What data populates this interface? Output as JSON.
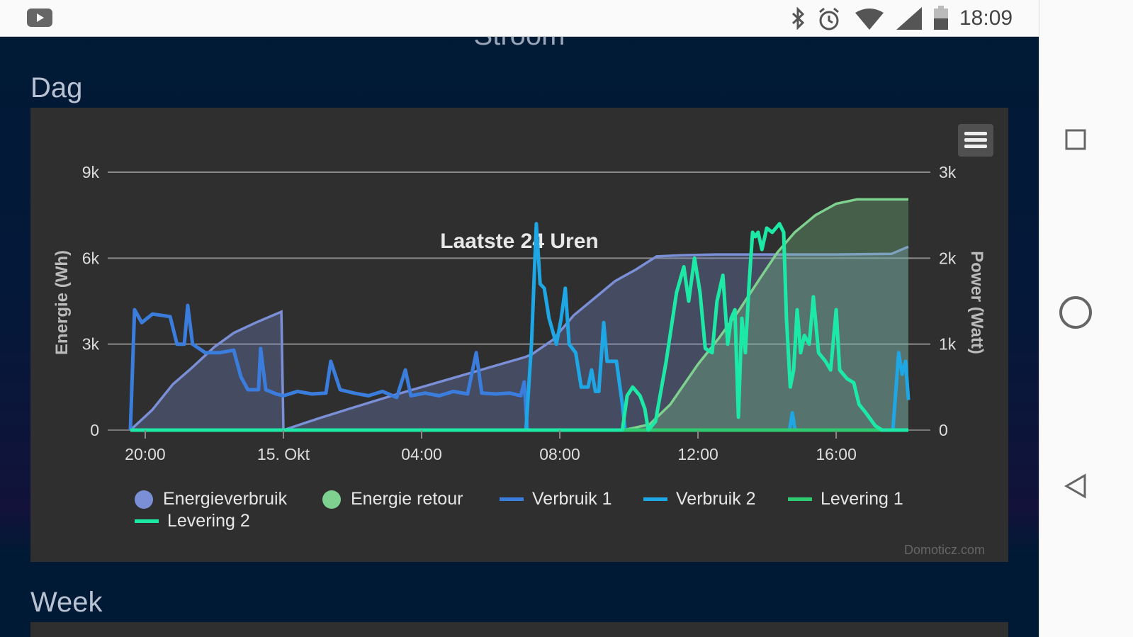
{
  "status_bar": {
    "time": "18:09",
    "icons": [
      "youtube-icon",
      "bluetooth-icon",
      "alarm-icon",
      "wifi-icon",
      "signal-icon",
      "battery-icon"
    ]
  },
  "page": {
    "heading": "Stroom",
    "section_day": "Dag",
    "section_week": "Week",
    "credits": "Domoticz.com"
  },
  "nav_bar": {
    "icons": [
      "recents-icon",
      "home-icon",
      "back-icon"
    ]
  },
  "chart_data": {
    "type": "line",
    "title": "Laatste 24 Uren",
    "x_unit": "hours since 20:00 (14 Okt)",
    "xlim": [
      -0.43,
      22.09
    ],
    "x_ticks": [
      {
        "value": 0,
        "label": "20:00"
      },
      {
        "value": 4,
        "label": "15. Okt"
      },
      {
        "value": 8,
        "label": "04:00"
      },
      {
        "value": 12,
        "label": "08:00"
      },
      {
        "value": 16,
        "label": "12:00"
      },
      {
        "value": 20,
        "label": "16:00"
      }
    ],
    "ylabel_left": "Energie (Wh)",
    "ylim_left": [
      0,
      9000
    ],
    "y_ticks_left": [
      {
        "value": 0,
        "label": "0"
      },
      {
        "value": 3000,
        "label": "3k"
      },
      {
        "value": 6000,
        "label": "6k"
      },
      {
        "value": 9000,
        "label": "9k"
      }
    ],
    "ylabel_right": "Power (Watt)",
    "ylim_right": [
      0,
      3000
    ],
    "y_ticks_right": [
      {
        "value": 0,
        "label": "0"
      },
      {
        "value": 1000,
        "label": "1k"
      },
      {
        "value": 2000,
        "label": "2k"
      },
      {
        "value": 3000,
        "label": "3k"
      }
    ],
    "grid": true,
    "legend_position": "bottom",
    "series": [
      {
        "name": "Energieverbruik",
        "kind": "area",
        "axis": "left",
        "color": "#7b8fd6",
        "legend_symbol": "dot",
        "points": [
          [
            -0.43,
            0
          ],
          [
            0.2,
            700
          ],
          [
            0.8,
            1600
          ],
          [
            1.33,
            2150
          ],
          [
            2.0,
            2900
          ],
          [
            2.56,
            3390
          ],
          [
            3.2,
            3750
          ],
          [
            3.94,
            4130
          ],
          [
            4.0,
            0
          ],
          [
            5.0,
            400
          ],
          [
            6,
            780
          ],
          [
            7,
            1150
          ],
          [
            8,
            1500
          ],
          [
            9,
            1850
          ],
          [
            10,
            2200
          ],
          [
            11,
            2550
          ],
          [
            11.2,
            2650
          ],
          [
            11.8,
            3150
          ],
          [
            12.4,
            4000
          ],
          [
            13,
            4600
          ],
          [
            13.6,
            5200
          ],
          [
            14.2,
            5600
          ],
          [
            14.8,
            6060
          ],
          [
            15.5,
            6100
          ],
          [
            16.5,
            6130
          ],
          [
            20,
            6130
          ],
          [
            21.6,
            6150
          ],
          [
            22.09,
            6400
          ]
        ]
      },
      {
        "name": "Energie retour",
        "kind": "area",
        "axis": "left",
        "color": "#7fd18f",
        "legend_symbol": "dot",
        "points": [
          [
            -0.43,
            0
          ],
          [
            13.85,
            0
          ],
          [
            14.6,
            200
          ],
          [
            15.2,
            900
          ],
          [
            16,
            2300
          ],
          [
            16.6,
            3200
          ],
          [
            17.2,
            4200
          ],
          [
            17.8,
            5300
          ],
          [
            18.3,
            6200
          ],
          [
            18.8,
            6900
          ],
          [
            19.4,
            7500
          ],
          [
            20,
            7900
          ],
          [
            20.6,
            8050
          ],
          [
            22.09,
            8050
          ]
        ]
      },
      {
        "name": "Verbruik 1",
        "kind": "line",
        "axis": "right",
        "color": "#3b7ddd",
        "legend_symbol": "bar",
        "points": [
          [
            -0.43,
            0
          ],
          [
            -0.31,
            1400
          ],
          [
            -0.1,
            1250
          ],
          [
            0.21,
            1350
          ],
          [
            0.72,
            1320
          ],
          [
            0.92,
            1000
          ],
          [
            1.13,
            1000
          ],
          [
            1.23,
            1450
          ],
          [
            1.37,
            1000
          ],
          [
            1.74,
            900
          ],
          [
            2.15,
            900
          ],
          [
            2.56,
            930
          ],
          [
            2.77,
            620
          ],
          [
            2.97,
            470
          ],
          [
            3.28,
            470
          ],
          [
            3.34,
            950
          ],
          [
            3.49,
            470
          ],
          [
            3.79,
            420
          ],
          [
            4.0,
            400
          ],
          [
            4.41,
            450
          ],
          [
            4.82,
            420
          ],
          [
            5.23,
            430
          ],
          [
            5.37,
            800
          ],
          [
            5.64,
            470
          ],
          [
            6.05,
            430
          ],
          [
            6.46,
            400
          ],
          [
            6.87,
            450
          ],
          [
            7.28,
            380
          ],
          [
            7.53,
            700
          ],
          [
            7.69,
            400
          ],
          [
            8.1,
            430
          ],
          [
            8.51,
            400
          ],
          [
            8.92,
            450
          ],
          [
            9.33,
            420
          ],
          [
            9.58,
            900
          ],
          [
            9.74,
            430
          ],
          [
            10.15,
            420
          ],
          [
            10.56,
            430
          ],
          [
            10.87,
            400
          ],
          [
            10.97,
            560
          ],
          [
            11.06,
            0
          ],
          [
            22.09,
            0
          ]
        ]
      },
      {
        "name": "Verbruik 2",
        "kind": "line",
        "axis": "right",
        "color": "#1ea7e4",
        "legend_symbol": "bar",
        "points": [
          [
            -0.43,
            0
          ],
          [
            11.02,
            0
          ],
          [
            11.18,
            1000
          ],
          [
            11.32,
            2400
          ],
          [
            11.43,
            1700
          ],
          [
            11.55,
            1650
          ],
          [
            11.69,
            1300
          ],
          [
            11.9,
            1000
          ],
          [
            12.04,
            1300
          ],
          [
            12.16,
            1650
          ],
          [
            12.27,
            1000
          ],
          [
            12.46,
            900
          ],
          [
            12.62,
            500
          ],
          [
            12.82,
            500
          ],
          [
            12.92,
            700
          ],
          [
            13.03,
            450
          ],
          [
            13.13,
            450
          ],
          [
            13.27,
            1250
          ],
          [
            13.37,
            800
          ],
          [
            13.64,
            800
          ],
          [
            13.81,
            300
          ],
          [
            13.89,
            0
          ],
          [
            18.65,
            0
          ],
          [
            18.73,
            200
          ],
          [
            18.81,
            0
          ],
          [
            21.64,
            0
          ],
          [
            21.81,
            900
          ],
          [
            21.91,
            650
          ],
          [
            22.01,
            800
          ],
          [
            22.09,
            350
          ]
        ]
      },
      {
        "name": "Levering 1",
        "kind": "line",
        "axis": "right",
        "color": "#2ecc71",
        "legend_symbol": "bar",
        "points": [
          [
            -0.43,
            0
          ],
          [
            22.09,
            0
          ]
        ]
      },
      {
        "name": "Levering 2",
        "kind": "line",
        "axis": "right",
        "color": "#1de9a6",
        "legend_symbol": "bar",
        "points": [
          [
            -0.43,
            0
          ],
          [
            13.81,
            0
          ],
          [
            13.95,
            400
          ],
          [
            14.11,
            500
          ],
          [
            14.32,
            400
          ],
          [
            14.46,
            250
          ],
          [
            14.56,
            0
          ],
          [
            14.77,
            100
          ],
          [
            15.08,
            800
          ],
          [
            15.38,
            1600
          ],
          [
            15.59,
            1900
          ],
          [
            15.73,
            1500
          ],
          [
            15.9,
            2000
          ],
          [
            16.06,
            1600
          ],
          [
            16.21,
            950
          ],
          [
            16.41,
            900
          ],
          [
            16.55,
            1500
          ],
          [
            16.72,
            1800
          ],
          [
            16.86,
            1000
          ],
          [
            16.96,
            1300
          ],
          [
            17.07,
            1400
          ],
          [
            17.17,
            150
          ],
          [
            17.27,
            1300
          ],
          [
            17.37,
            900
          ],
          [
            17.48,
            1700
          ],
          [
            17.58,
            2300
          ],
          [
            17.66,
            2250
          ],
          [
            17.74,
            2300
          ],
          [
            17.85,
            2100
          ],
          [
            17.99,
            2350
          ],
          [
            18.15,
            2300
          ],
          [
            18.36,
            2400
          ],
          [
            18.48,
            2300
          ],
          [
            18.56,
            1300
          ],
          [
            18.67,
            500
          ],
          [
            18.77,
            700
          ],
          [
            18.87,
            1400
          ],
          [
            18.97,
            900
          ],
          [
            19.08,
            1100
          ],
          [
            19.22,
            1000
          ],
          [
            19.34,
            1550
          ],
          [
            19.49,
            900
          ],
          [
            19.69,
            800
          ],
          [
            19.84,
            700
          ],
          [
            20.0,
            1400
          ],
          [
            20.1,
            700
          ],
          [
            20.31,
            600
          ],
          [
            20.51,
            550
          ],
          [
            20.66,
            300
          ],
          [
            20.86,
            200
          ],
          [
            21.13,
            50
          ],
          [
            21.33,
            0
          ],
          [
            22.09,
            0
          ]
        ]
      }
    ]
  }
}
